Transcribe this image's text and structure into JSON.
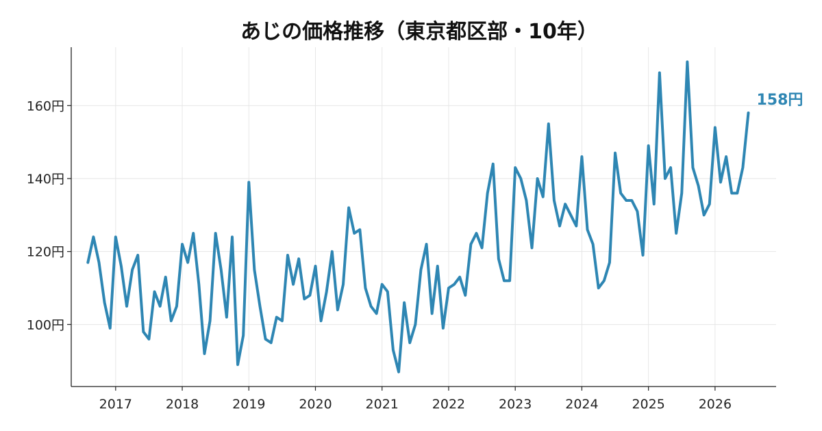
{
  "chart_data": {
    "type": "line",
    "title": "あじの価格推移（東京都区部・10年）",
    "xlabel": "",
    "ylabel": "",
    "x_tick_labels": [
      "2017",
      "2018",
      "2019",
      "2020",
      "2021",
      "2022",
      "2023",
      "2024",
      "2025",
      "2026"
    ],
    "y_ticks": [
      100,
      120,
      140,
      160
    ],
    "y_tick_suffix": "円",
    "xlim": [
      "2016-05",
      "2026-12"
    ],
    "ylim": [
      83,
      176
    ],
    "grid": true,
    "line_color": "#2e86b3",
    "end_label": "158円",
    "series": [
      {
        "x": [
          "2016-08",
          "2016-09",
          "2016-10",
          "2016-11",
          "2016-12",
          "2017-01",
          "2017-02",
          "2017-03",
          "2017-04",
          "2017-05",
          "2017-06",
          "2017-07",
          "2017-08",
          "2017-09",
          "2017-10",
          "2017-11",
          "2017-12",
          "2018-01",
          "2018-02",
          "2018-03",
          "2018-04",
          "2018-05",
          "2018-06",
          "2018-07",
          "2018-08",
          "2018-09",
          "2018-10",
          "2018-11",
          "2018-12",
          "2019-01",
          "2019-02",
          "2019-03",
          "2019-04",
          "2019-05",
          "2019-06",
          "2019-07",
          "2019-08",
          "2019-09",
          "2019-10",
          "2019-11",
          "2019-12",
          "2020-01",
          "2020-02",
          "2020-03",
          "2020-04",
          "2020-05",
          "2020-06",
          "2020-07",
          "2020-08",
          "2020-09",
          "2020-10",
          "2020-11",
          "2020-12",
          "2021-01",
          "2021-02",
          "2021-03",
          "2021-04",
          "2021-05",
          "2021-06",
          "2021-07",
          "2021-08",
          "2021-09",
          "2021-10",
          "2021-11",
          "2021-12",
          "2022-01",
          "2022-02",
          "2022-03",
          "2022-04",
          "2022-05",
          "2022-06",
          "2022-07",
          "2022-08",
          "2022-09",
          "2022-10",
          "2022-11",
          "2022-12",
          "2023-01",
          "2023-02",
          "2023-03",
          "2023-04",
          "2023-05",
          "2023-06",
          "2023-07",
          "2023-08",
          "2023-09",
          "2023-10",
          "2023-11",
          "2023-12",
          "2024-01",
          "2024-02",
          "2024-03",
          "2024-04",
          "2024-05",
          "2024-06",
          "2024-07",
          "2024-08",
          "2024-09",
          "2024-10",
          "2024-11",
          "2024-12",
          "2025-01",
          "2025-02",
          "2025-03",
          "2025-04",
          "2025-05",
          "2025-06",
          "2025-07",
          "2025-08",
          "2025-09",
          "2025-10",
          "2025-11",
          "2025-12",
          "2026-01",
          "2026-02",
          "2026-03",
          "2026-04",
          "2026-05",
          "2026-06",
          "2026-07"
        ],
        "values": [
          117,
          124,
          117,
          106,
          99,
          124,
          116,
          105,
          115,
          119,
          98,
          96,
          109,
          105,
          113,
          101,
          105,
          122,
          117,
          125,
          111,
          92,
          101,
          125,
          115,
          102,
          124,
          89,
          97,
          139,
          115,
          105,
          96,
          95,
          102,
          101,
          119,
          111,
          118,
          107,
          108,
          116,
          101,
          109,
          120,
          104,
          111,
          132,
          125,
          126,
          110,
          105,
          103,
          111,
          109,
          93,
          87,
          106,
          95,
          100,
          115,
          122,
          103,
          116,
          99,
          110,
          111,
          113,
          108,
          122,
          125,
          121,
          136,
          144,
          118,
          112,
          112,
          143,
          140,
          134,
          121,
          140,
          135,
          155,
          134,
          127,
          133,
          130,
          127,
          146,
          126,
          122,
          110,
          112,
          117,
          147,
          136,
          134,
          134,
          131,
          119,
          149,
          133,
          169,
          140,
          143,
          125,
          136,
          172,
          143,
          138,
          130,
          133,
          154,
          139,
          146,
          136,
          136,
          143,
          158
        ]
      }
    ]
  }
}
